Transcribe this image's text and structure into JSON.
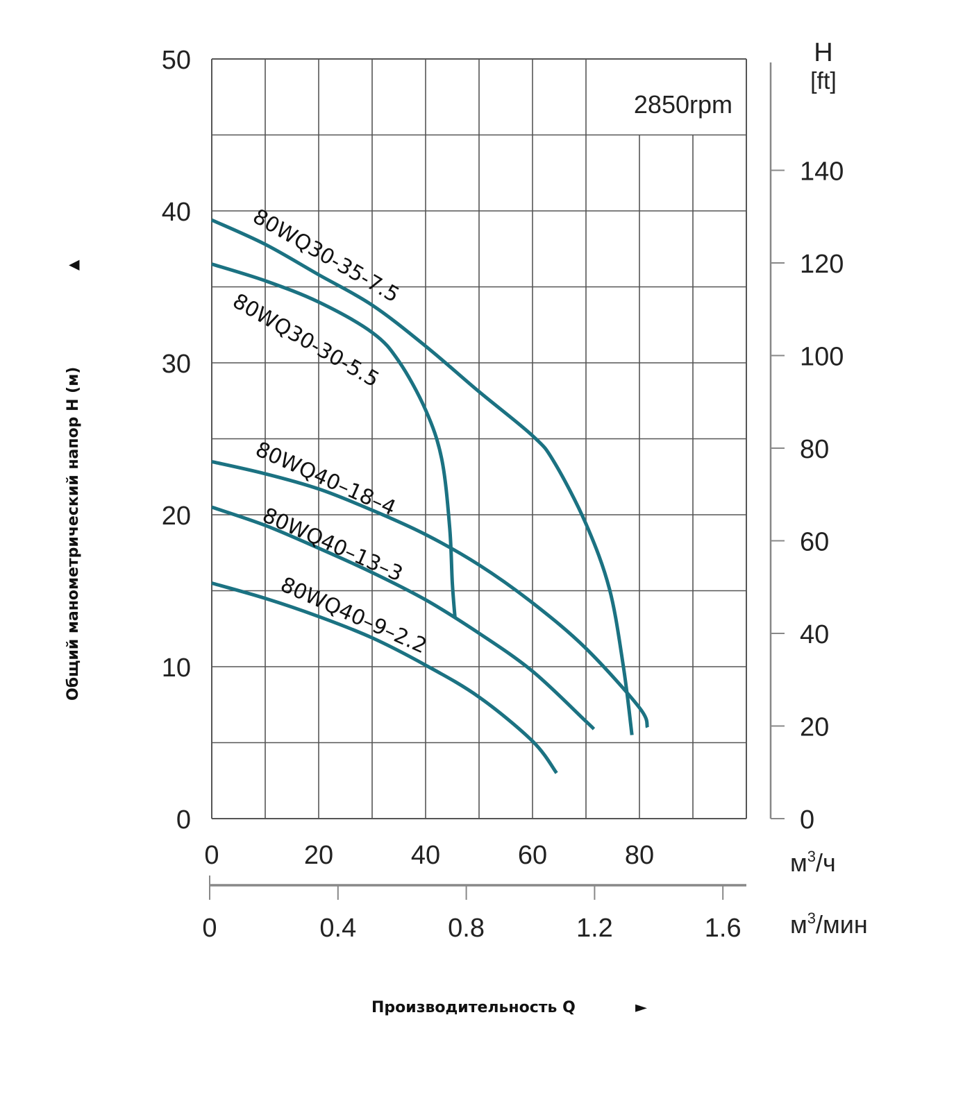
{
  "chart_data": {
    "type": "line",
    "annotation": "2850rpm",
    "ylabel": "Общий манометрический напор H (м)",
    "xlabel": "Производительность Q",
    "y_arrow": "▲",
    "x_arrow": "►",
    "xlim": [
      0,
      100
    ],
    "ylim": [
      0,
      50
    ],
    "grid": true,
    "x_ticks": [
      "0",
      "20",
      "40",
      "60",
      "80"
    ],
    "x_tick_values": [
      0,
      20,
      40,
      60,
      80
    ],
    "x_unit": "м³/ч",
    "x_unit_base": "м",
    "x_unit_sup": "3",
    "x_unit_tail": "/ч",
    "x2_ticks": [
      "0",
      "0.4",
      "0.8",
      "1.2",
      "1.6"
    ],
    "x2_tick_values": [
      0,
      0.4,
      0.8,
      1.2,
      1.6
    ],
    "x2_unit": "м³/мин",
    "x2_unit_base": "м",
    "x2_unit_sup": "3",
    "x2_unit_tail": "/мин",
    "y_ticks": [
      "0",
      "10",
      "20",
      "30",
      "40",
      "50"
    ],
    "y_tick_values": [
      0,
      10,
      20,
      30,
      40,
      50
    ],
    "y2_title": "H",
    "y2_unit": "[ft]",
    "y2_ticks": [
      "0",
      "20",
      "40",
      "60",
      "80",
      "100",
      "120",
      "140"
    ],
    "y2_tick_values": [
      0,
      20,
      40,
      60,
      80,
      100,
      120,
      140
    ],
    "series": [
      {
        "name": "80WQ30-35-7.5",
        "x": [
          0,
          10,
          20,
          30,
          40,
          50,
          60,
          64,
          70,
          74.4,
          77,
          78.6
        ],
        "y": [
          39.4,
          37.8,
          35.8,
          33.8,
          31.1,
          28.1,
          25.2,
          23.5,
          19.4,
          15.1,
          10.0,
          5.5
        ]
      },
      {
        "name": "80WQ30-30-5.5",
        "x": [
          0,
          10,
          20,
          30,
          35,
          40,
          43,
          44.5,
          45,
          45.5
        ],
        "y": [
          36.5,
          35.4,
          34.0,
          32.0,
          30.1,
          26.9,
          23.7,
          19.2,
          15.5,
          13.2
        ]
      },
      {
        "name": "80WQ40–18–4",
        "x": [
          0,
          10,
          20,
          30,
          40,
          50,
          60,
          70,
          80,
          81.5
        ],
        "y": [
          23.5,
          22.7,
          21.7,
          20.3,
          18.7,
          16.7,
          14.2,
          11.2,
          7.3,
          6.0
        ]
      },
      {
        "name": "80WQ40–13–3",
        "x": [
          0,
          10,
          20,
          30,
          40,
          50,
          60,
          70,
          71.5
        ],
        "y": [
          20.5,
          19.3,
          17.8,
          16.2,
          14.4,
          12.2,
          9.7,
          6.4,
          5.9
        ]
      },
      {
        "name": "80WQ40–9–2.2",
        "x": [
          0,
          10,
          20,
          30,
          40,
          50,
          60,
          64.5
        ],
        "y": [
          15.5,
          14.5,
          13.3,
          11.9,
          10.1,
          8.0,
          5.1,
          3.0
        ]
      }
    ],
    "colors": {
      "curve": "#1b7282",
      "grid": "#555555",
      "axis": "#888888",
      "text": "#222222"
    }
  }
}
